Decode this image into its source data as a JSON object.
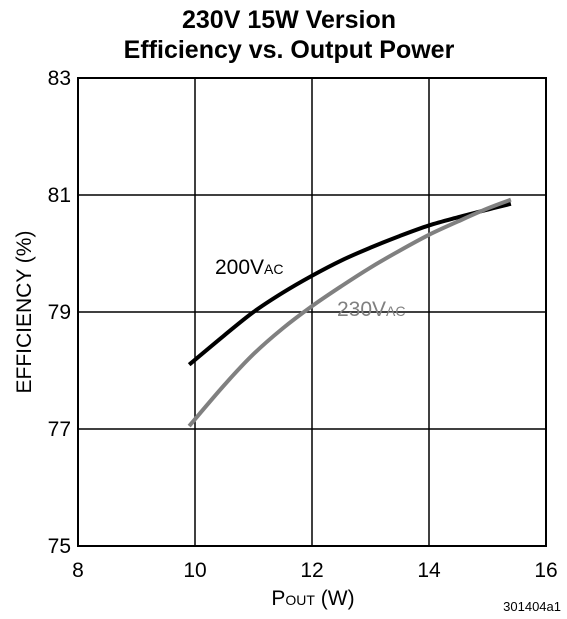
{
  "chart_data": {
    "type": "line",
    "title_line1": "230V 15W Version",
    "title_line2": "Efficiency vs. Output Power",
    "xlabel_main": "P",
    "xlabel_sub": "OUT",
    "xlabel_unit": " (W)",
    "ylabel": "EFFICIENCY (%)",
    "xlim": [
      8,
      16
    ],
    "ylim": [
      75,
      83
    ],
    "x_ticks": [
      8,
      10,
      12,
      14,
      16
    ],
    "y_ticks": [
      75,
      77,
      79,
      81,
      83
    ],
    "grid": true,
    "series": [
      {
        "name_main": "200V",
        "name_sub": "AC",
        "color": "#000000",
        "x": [
          9.9,
          10.5,
          11.0,
          11.5,
          12.0,
          12.5,
          13.0,
          13.5,
          14.0,
          14.5,
          15.0,
          15.4
        ],
        "y": [
          78.1,
          78.6,
          79.0,
          79.33,
          79.62,
          79.88,
          80.1,
          80.3,
          80.48,
          80.62,
          80.75,
          80.85
        ]
      },
      {
        "name_main": "230V",
        "name_sub": "AC",
        "color": "#808080",
        "x": [
          9.9,
          10.5,
          11.0,
          11.5,
          12.0,
          12.5,
          13.0,
          13.5,
          14.0,
          14.5,
          15.0,
          15.4
        ],
        "y": [
          77.05,
          77.75,
          78.28,
          78.72,
          79.1,
          79.44,
          79.76,
          80.05,
          80.32,
          80.55,
          80.77,
          80.92
        ]
      }
    ],
    "figure_id": "301404a1"
  }
}
